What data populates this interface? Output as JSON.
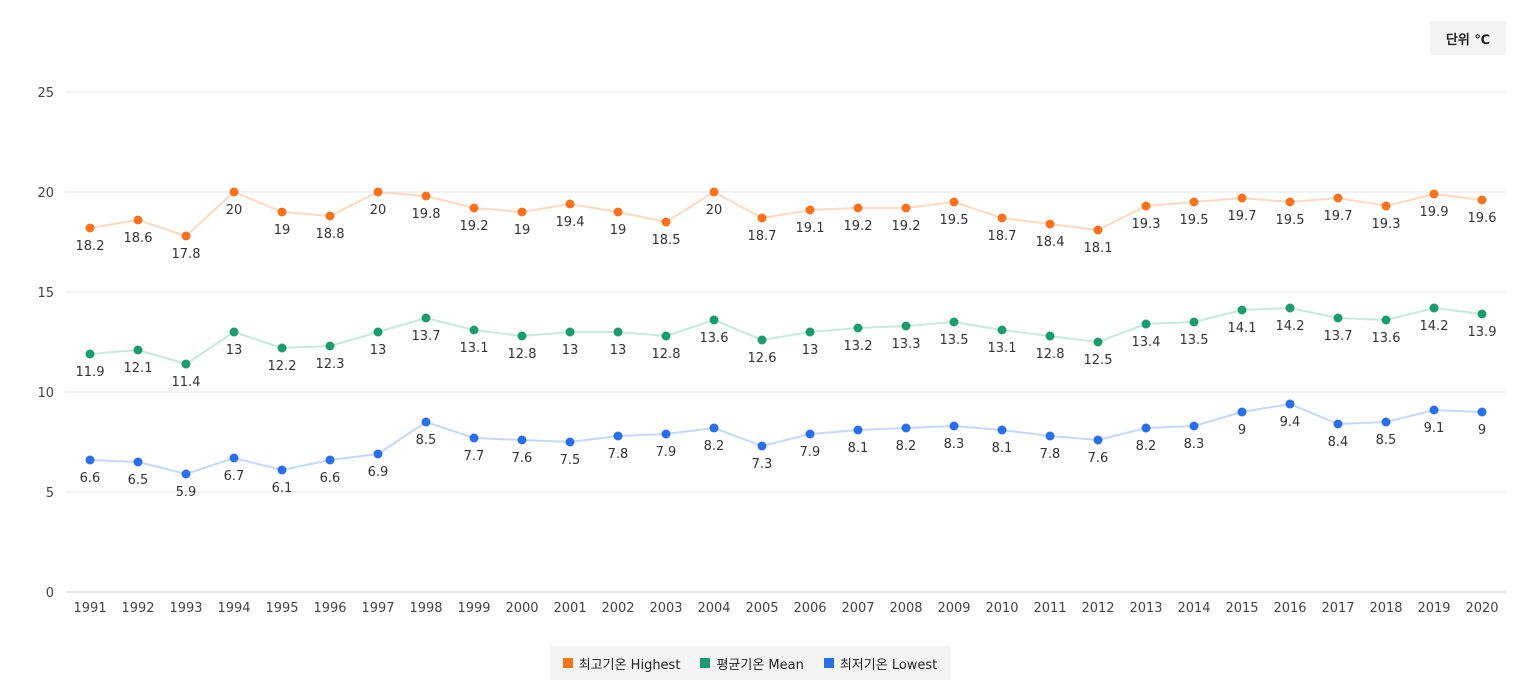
{
  "unit_label": "단위 ℃",
  "chart_data": {
    "type": "line",
    "categories": [
      "1991",
      "1992",
      "1993",
      "1994",
      "1995",
      "1996",
      "1997",
      "1998",
      "1999",
      "2000",
      "2001",
      "2002",
      "2003",
      "2004",
      "2005",
      "2006",
      "2007",
      "2008",
      "2009",
      "2010",
      "2011",
      "2012",
      "2013",
      "2014",
      "2015",
      "2016",
      "2017",
      "2018",
      "2019",
      "2020"
    ],
    "ylim": [
      0,
      25
    ],
    "yticks": [
      0,
      5,
      10,
      15,
      20,
      25
    ],
    "grid": true,
    "legend_position": "bottom-center",
    "series": [
      {
        "name": "최고기온 Highest",
        "color": "#f37321",
        "values": [
          18.2,
          18.6,
          17.8,
          20,
          19,
          18.8,
          20,
          19.8,
          19.2,
          19,
          19.4,
          19,
          18.5,
          20,
          18.7,
          19.1,
          19.2,
          19.2,
          19.5,
          18.7,
          18.4,
          18.1,
          19.3,
          19.5,
          19.7,
          19.5,
          19.7,
          19.3,
          19.9,
          19.6
        ]
      },
      {
        "name": "평균기온 Mean",
        "color": "#1e9b6c",
        "values": [
          11.9,
          12.1,
          11.4,
          13,
          12.2,
          12.3,
          13,
          13.7,
          13.1,
          12.8,
          13,
          13,
          12.8,
          13.6,
          12.6,
          13,
          13.2,
          13.3,
          13.5,
          13.1,
          12.8,
          12.5,
          13.4,
          13.5,
          14.1,
          14.2,
          13.7,
          13.6,
          14.2,
          13.9
        ]
      },
      {
        "name": "최저기온 Lowest",
        "color": "#2c6fe0",
        "values": [
          6.6,
          6.5,
          5.9,
          6.7,
          6.1,
          6.6,
          6.9,
          8.5,
          7.7,
          7.6,
          7.5,
          7.8,
          7.9,
          8.2,
          7.3,
          7.9,
          8.1,
          8.2,
          8.3,
          8.1,
          7.8,
          7.6,
          8.2,
          8.3,
          9,
          9.4,
          8.4,
          8.5,
          9.1,
          9
        ]
      }
    ]
  }
}
